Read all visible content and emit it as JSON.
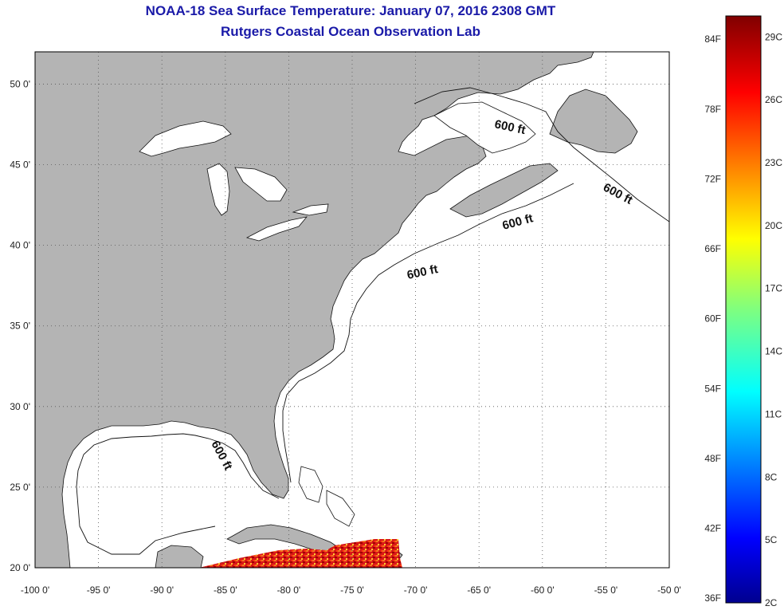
{
  "title": "NOAA-18 Sea Surface Temperature:  January 07, 2016 2308 GMT",
  "subtitle": "Rutgers Coastal Ocean Observation Lab",
  "map": {
    "lon_range": [
      -100,
      -50
    ],
    "lat_range": [
      20,
      52
    ],
    "lon_ticks": [
      "-100 0'",
      "-95 0'",
      "-90 0'",
      "-85 0'",
      "-80 0'",
      "-75 0'",
      "-70 0'",
      "-65 0'",
      "-60 0'",
      "-55 0'",
      "-50 0'"
    ],
    "lat_ticks": [
      "20 0'",
      "25 0'",
      "30 0'",
      "35 0'",
      "40 0'",
      "45 0'",
      "50 0'"
    ],
    "grid": "dotted",
    "land_color": "#b4b4b4",
    "contour_labels": [
      "600 ft",
      "600 ft",
      "600 ft",
      "600 ft",
      "600 ft"
    ]
  },
  "colorbar": {
    "f_labels": [
      "84F",
      "78F",
      "72F",
      "66F",
      "60F",
      "54F",
      "48F",
      "42F",
      "36F"
    ],
    "c_labels": [
      "29C",
      "26C",
      "23C",
      "20C",
      "17C",
      "14C",
      "11C",
      "8C",
      "5C",
      "2C"
    ]
  }
}
